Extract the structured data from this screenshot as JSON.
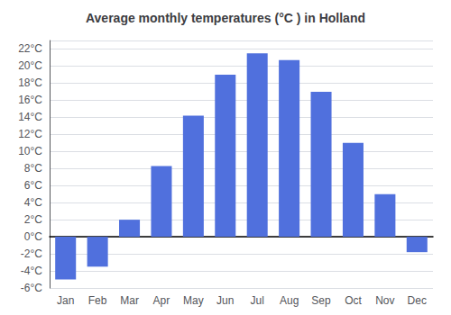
{
  "chart_data": {
    "type": "bar",
    "title": "Average monthly temperatures (°C ) in Holland",
    "categories": [
      "Jan",
      "Feb",
      "Mar",
      "Apr",
      "May",
      "Jun",
      "Jul",
      "Aug",
      "Sep",
      "Oct",
      "Nov",
      "Dec"
    ],
    "values": [
      -5.0,
      -3.5,
      2.0,
      8.3,
      14.2,
      19.0,
      21.5,
      20.7,
      17.0,
      11.0,
      5.0,
      -1.8
    ],
    "ylim": [
      -6,
      23
    ],
    "yticks": [
      {
        "value": -6,
        "label": "-6°C"
      },
      {
        "value": -4,
        "label": "-4°C"
      },
      {
        "value": -2,
        "label": "-2°C"
      },
      {
        "value": 0,
        "label": "0°C"
      },
      {
        "value": 2,
        "label": "2°C"
      },
      {
        "value": 4,
        "label": "4°C"
      },
      {
        "value": 6,
        "label": "6°C"
      },
      {
        "value": 8,
        "label": "8°C"
      },
      {
        "value": 10,
        "label": "10°C"
      },
      {
        "value": 12,
        "label": "12°C"
      },
      {
        "value": 14,
        "label": "14°C"
      },
      {
        "value": 16,
        "label": "16°C"
      },
      {
        "value": 18,
        "label": "18°C"
      },
      {
        "value": 20,
        "label": "20°C"
      },
      {
        "value": 22,
        "label": "22°C"
      }
    ],
    "grid": true
  }
}
